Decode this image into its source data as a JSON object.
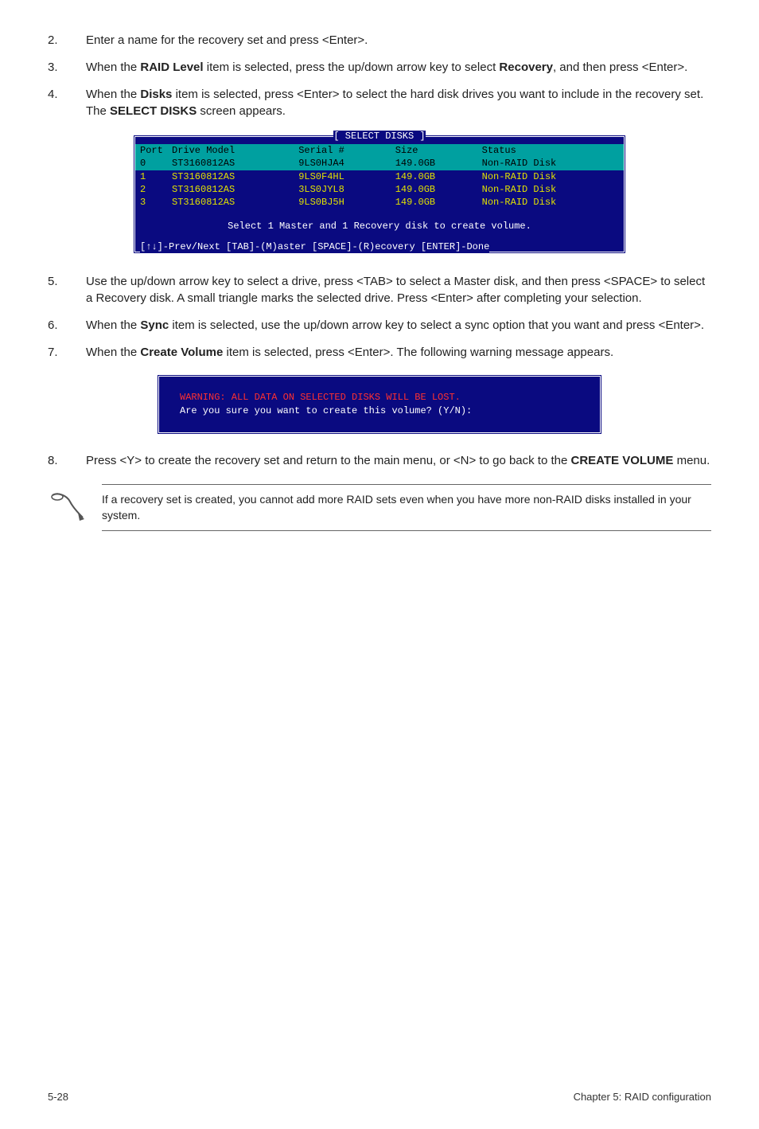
{
  "steps_a": [
    {
      "n": "2.",
      "html": "Enter a name for the recovery set and press <Enter>."
    },
    {
      "n": "3.",
      "html": "When the <b>RAID Level</b> item is selected, press the up/down arrow key to select <b>Recovery</b>, and then press <Enter>."
    },
    {
      "n": "4.",
      "html": "When the <b>Disks</b> item is selected, press <Enter> to select the hard disk drives you want to include in the recovery set. The <b>SELECT DISKS</b> screen appears."
    }
  ],
  "select_disks": {
    "title": "[ SELECT DISKS ]",
    "headers": [
      "Port",
      "Drive Model",
      "Serial #",
      "Size",
      "Status"
    ],
    "rows": [
      {
        "hl": true,
        "cells": [
          "0",
          "ST3160812AS",
          "9LS0HJA4",
          "149.0GB",
          "Non-RAID Disk"
        ]
      },
      {
        "hl": false,
        "cells": [
          "1",
          "ST3160812AS",
          "9LS0F4HL",
          "149.0GB",
          "Non-RAID Disk"
        ]
      },
      {
        "hl": false,
        "cells": [
          "2",
          "ST3160812AS",
          "3LS0JYL8",
          "149.0GB",
          "Non-RAID Disk"
        ]
      },
      {
        "hl": false,
        "cells": [
          "3",
          "ST3160812AS",
          "9LS0BJ5H",
          "149.0GB",
          "Non-RAID Disk"
        ]
      }
    ],
    "message": "Select 1 Master and 1 Recovery disk to create volume.",
    "footer": "[↑↓]-Prev/Next [TAB]-(M)aster [SPACE]-(R)ecovery [ENTER]-Done"
  },
  "steps_b": [
    {
      "n": "5.",
      "html": "Use the up/down arrow key to select a drive, press <TAB> to select a Master disk, and then press <SPACE> to select a Recovery disk. A small triangle marks the selected drive. Press <Enter> after completing your selection."
    },
    {
      "n": "6.",
      "html": "When the <b>Sync</b> item is selected, use the up/down arrow key to select a sync option that you want and press <Enter>."
    },
    {
      "n": "7.",
      "html": "When the <b>Create Volume</b> item is selected, press <Enter>. The following warning message appears."
    }
  ],
  "warn": {
    "line1": "WARNING: ALL DATA ON SELECTED DISKS WILL BE LOST.",
    "line2": "Are you sure you want to create this volume? (Y/N):"
  },
  "steps_c": [
    {
      "n": "8.",
      "html": "Press <Y> to create the recovery set and return to the main menu, or <N> to go back to the <b>CREATE VOLUME</b> menu."
    }
  ],
  "note": "If a recovery set is created, you cannot add more RAID sets even when you have more non-RAID disks installed in your system.",
  "footer": {
    "left": "5-28",
    "right": "Chapter 5: RAID configuration"
  },
  "colors": {
    "terminal_bg": "#0a0a80",
    "header_bg": "#00a0a0",
    "row_text": "#e0e000",
    "warn_text": "#ff3030"
  }
}
